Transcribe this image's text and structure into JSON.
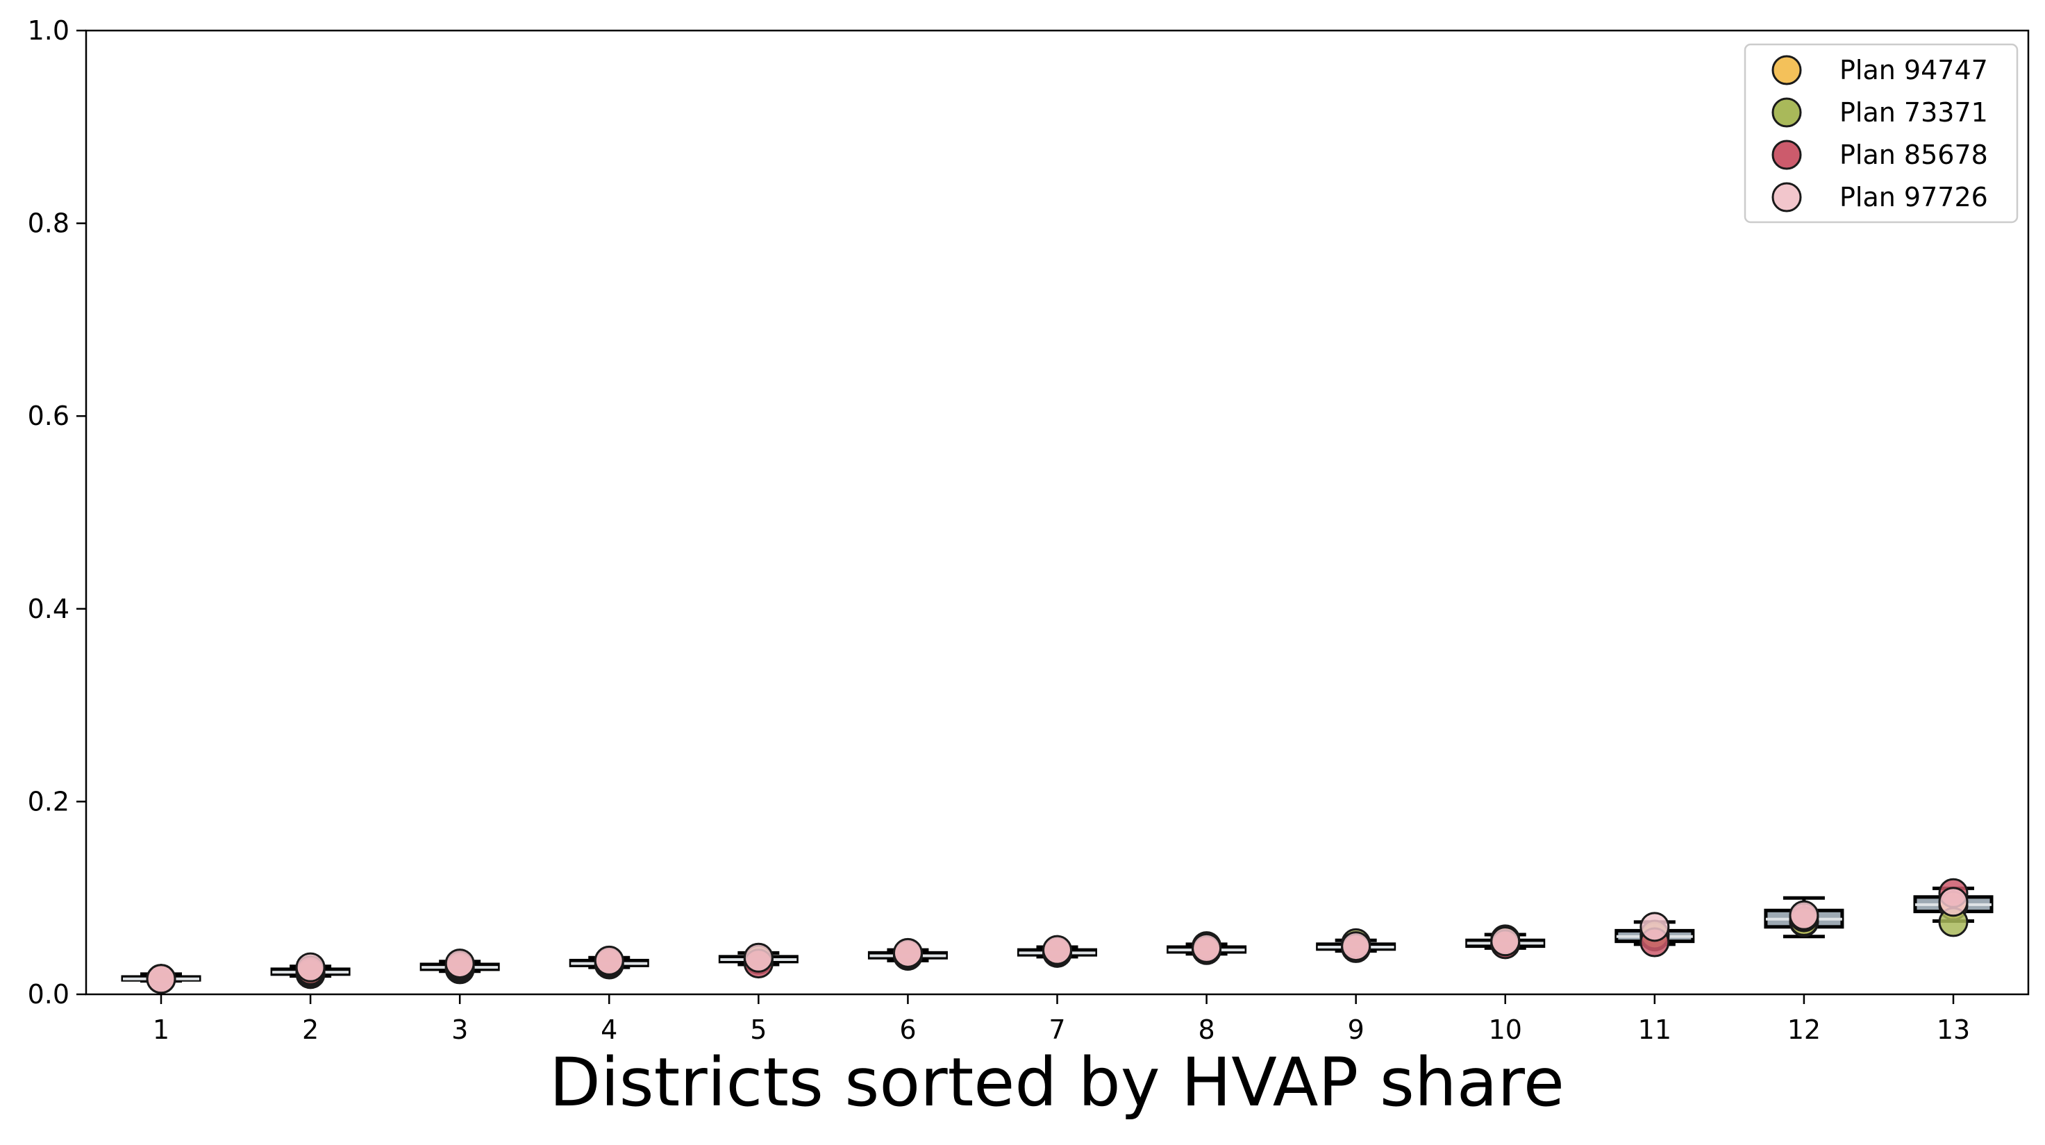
{
  "chart_data": {
    "type": "box",
    "xlabel": "Districts sorted by HVAP share",
    "ylabel": "",
    "title": "",
    "ylim": [
      0,
      1.0
    ],
    "yticks": [
      "0.0",
      "0.2",
      "0.4",
      "0.6",
      "0.8",
      "1.0"
    ],
    "categories": [
      "1",
      "2",
      "3",
      "4",
      "5",
      "6",
      "7",
      "8",
      "9",
      "10",
      "11",
      "12",
      "13"
    ],
    "legend_position": "top-right",
    "grid": false,
    "boxes": [
      {
        "whislo": 0.014,
        "q1": 0.015,
        "med": 0.016,
        "q3": 0.018,
        "whishi": 0.021
      },
      {
        "whislo": 0.019,
        "q1": 0.021,
        "med": 0.023,
        "q3": 0.026,
        "whishi": 0.029
      },
      {
        "whislo": 0.024,
        "q1": 0.026,
        "med": 0.028,
        "q3": 0.031,
        "whishi": 0.034
      },
      {
        "whislo": 0.028,
        "q1": 0.03,
        "med": 0.032,
        "q3": 0.035,
        "whishi": 0.038
      },
      {
        "whislo": 0.031,
        "q1": 0.034,
        "med": 0.036,
        "q3": 0.039,
        "whishi": 0.043
      },
      {
        "whislo": 0.035,
        "q1": 0.038,
        "med": 0.04,
        "q3": 0.043,
        "whishi": 0.046
      },
      {
        "whislo": 0.039,
        "q1": 0.041,
        "med": 0.043,
        "q3": 0.046,
        "whishi": 0.049
      },
      {
        "whislo": 0.042,
        "q1": 0.044,
        "med": 0.046,
        "q3": 0.049,
        "whishi": 0.052
      },
      {
        "whislo": 0.045,
        "q1": 0.047,
        "med": 0.049,
        "q3": 0.052,
        "whishi": 0.056
      },
      {
        "whislo": 0.048,
        "q1": 0.05,
        "med": 0.053,
        "q3": 0.056,
        "whishi": 0.062
      },
      {
        "whislo": 0.052,
        "q1": 0.055,
        "med": 0.06,
        "q3": 0.066,
        "whishi": 0.075
      },
      {
        "whislo": 0.06,
        "q1": 0.07,
        "med": 0.078,
        "q3": 0.087,
        "whishi": 0.1
      },
      {
        "whislo": 0.076,
        "q1": 0.086,
        "med": 0.093,
        "q3": 0.101,
        "whishi": 0.11
      }
    ],
    "series": [
      {
        "name": "Plan 94747",
        "color": "#f4c15a",
        "values": [
          0.016,
          0.021,
          0.026,
          0.031,
          0.036,
          0.04,
          0.043,
          0.046,
          0.049,
          0.053,
          0.06,
          0.075,
          0.092
        ]
      },
      {
        "name": "Plan 73371",
        "color": "#a9b95a",
        "values": [
          0.016,
          0.023,
          0.028,
          0.033,
          0.036,
          0.041,
          0.044,
          0.05,
          0.053,
          0.057,
          0.062,
          0.076,
          0.075
        ]
      },
      {
        "name": "Plan 85678",
        "color": "#cc5b6c",
        "values": [
          0.016,
          0.025,
          0.03,
          0.034,
          0.032,
          0.042,
          0.045,
          0.046,
          0.048,
          0.052,
          0.054,
          0.08,
          0.105
        ]
      },
      {
        "name": "Plan 97726",
        "color": "#f2c6cc",
        "values": [
          0.016,
          0.028,
          0.032,
          0.035,
          0.038,
          0.043,
          0.046,
          0.048,
          0.05,
          0.055,
          0.07,
          0.082,
          0.096
        ]
      }
    ]
  }
}
